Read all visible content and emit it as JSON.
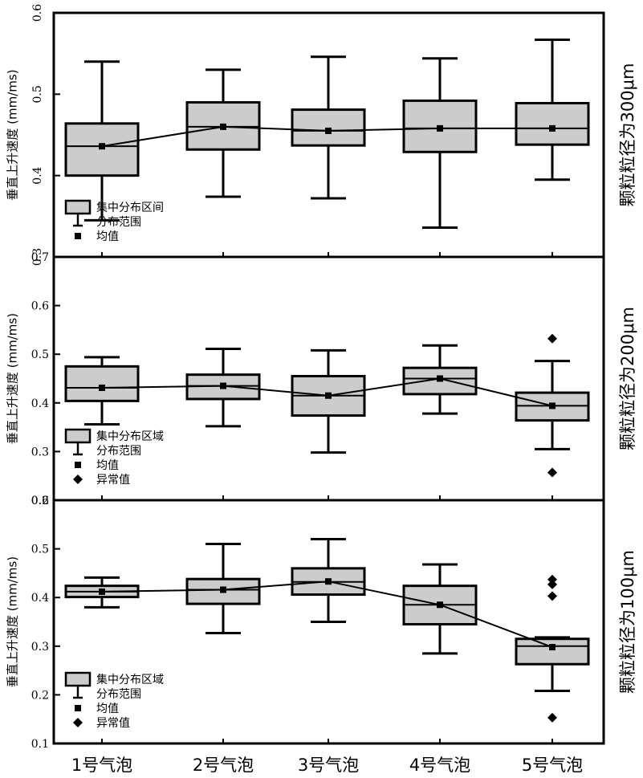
{
  "chart_data": [
    {
      "type": "box",
      "title": "颗粒粒径为300μm",
      "ylabel": "垂直上升速度 (mm/ms)",
      "ylim": [
        0.3,
        0.6
      ],
      "yticks": [
        "0.3",
        "0.4",
        "0.5",
        "0.6"
      ],
      "categories": [
        "1号气泡",
        "2号气泡",
        "3号气泡",
        "4号气泡",
        "5号气泡"
      ],
      "boxes": [
        {
          "whisker_low": 0.345,
          "q1": 0.4,
          "median": 0.436,
          "q3": 0.464,
          "whisker_high": 0.54,
          "mean": 0.436,
          "outliers": []
        },
        {
          "whisker_low": 0.374,
          "q1": 0.432,
          "median": 0.46,
          "q3": 0.49,
          "whisker_high": 0.53,
          "mean": 0.46,
          "outliers": []
        },
        {
          "whisker_low": 0.372,
          "q1": 0.437,
          "median": 0.455,
          "q3": 0.481,
          "whisker_high": 0.546,
          "mean": 0.455,
          "outliers": []
        },
        {
          "whisker_low": 0.336,
          "q1": 0.429,
          "median": 0.458,
          "q3": 0.492,
          "whisker_high": 0.544,
          "mean": 0.458,
          "outliers": []
        },
        {
          "whisker_low": 0.395,
          "q1": 0.438,
          "median": 0.458,
          "q3": 0.489,
          "whisker_high": 0.567,
          "mean": 0.458,
          "outliers": []
        }
      ],
      "legend": {
        "box": "集中分布区间",
        "range": "分布范围",
        "mean": "均值"
      }
    },
    {
      "type": "box",
      "title": "颗粒粒径为200μm",
      "ylabel": "垂直上升速度 (mm/ms)",
      "ylim": [
        0.2,
        0.7
      ],
      "yticks": [
        "0.2",
        "0.3",
        "0.4",
        "0.5",
        "0.6",
        "0.7"
      ],
      "categories": [
        "1号气泡",
        "2号气泡",
        "3号气泡",
        "4号气泡",
        "5号气泡"
      ],
      "boxes": [
        {
          "whisker_low": 0.356,
          "q1": 0.404,
          "median": 0.431,
          "q3": 0.475,
          "whisker_high": 0.494,
          "mean": 0.431,
          "outliers": []
        },
        {
          "whisker_low": 0.352,
          "q1": 0.408,
          "median": 0.435,
          "q3": 0.458,
          "whisker_high": 0.511,
          "mean": 0.435,
          "outliers": []
        },
        {
          "whisker_low": 0.298,
          "q1": 0.374,
          "median": 0.415,
          "q3": 0.455,
          "whisker_high": 0.508,
          "mean": 0.415,
          "outliers": []
        },
        {
          "whisker_low": 0.378,
          "q1": 0.418,
          "median": 0.45,
          "q3": 0.472,
          "whisker_high": 0.518,
          "mean": 0.45,
          "outliers": []
        },
        {
          "whisker_low": 0.305,
          "q1": 0.364,
          "median": 0.394,
          "q3": 0.421,
          "whisker_high": 0.486,
          "mean": 0.394,
          "outliers": [
            0.532,
            0.257
          ]
        }
      ],
      "legend": {
        "box": "集中分布区域",
        "range": "分布范围",
        "mean": "均值",
        "outlier": "异常值"
      }
    },
    {
      "type": "box",
      "title": "颗粒粒径为100μm",
      "ylabel": "垂直上升速度 (mm/ms)",
      "ylim": [
        0.1,
        0.6
      ],
      "yticks": [
        "0.1",
        "0.2",
        "0.3",
        "0.4",
        "0.5",
        "0.6"
      ],
      "xlabel_ticks": [
        "1号气泡",
        "2号气泡",
        "3号气泡",
        "4号气泡",
        "5号气泡"
      ],
      "categories": [
        "1号气泡",
        "2号气泡",
        "3号气泡",
        "4号气泡",
        "5号气泡"
      ],
      "boxes": [
        {
          "whisker_low": 0.38,
          "q1": 0.401,
          "median": 0.412,
          "q3": 0.424,
          "whisker_high": 0.441,
          "mean": 0.412,
          "outliers": []
        },
        {
          "whisker_low": 0.327,
          "q1": 0.387,
          "median": 0.416,
          "q3": 0.438,
          "whisker_high": 0.51,
          "mean": 0.416,
          "outliers": []
        },
        {
          "whisker_low": 0.35,
          "q1": 0.406,
          "median": 0.432,
          "q3": 0.46,
          "whisker_high": 0.52,
          "mean": 0.433,
          "outliers": []
        },
        {
          "whisker_low": 0.285,
          "q1": 0.345,
          "median": 0.385,
          "q3": 0.424,
          "whisker_high": 0.468,
          "mean": 0.385,
          "outliers": []
        },
        {
          "whisker_low": 0.208,
          "q1": 0.263,
          "median": 0.3,
          "q3": 0.315,
          "whisker_high": 0.318,
          "mean": 0.298,
          "outliers": [
            0.437,
            0.427,
            0.403,
            0.153
          ]
        }
      ],
      "legend": {
        "box": "集中分布区域",
        "range": "分布范围",
        "mean": "均值",
        "outlier": "异常值"
      }
    }
  ],
  "colors": {
    "box_fill": "#cccccc",
    "stroke": "#000000",
    "background": "#ffffff"
  }
}
